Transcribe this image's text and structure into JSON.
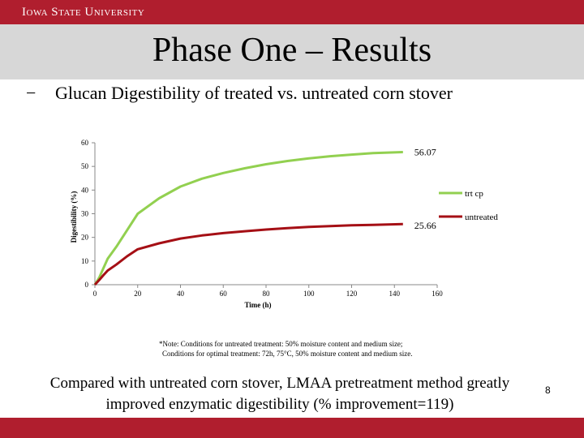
{
  "header": {
    "brand": "Iowa State University"
  },
  "slide": {
    "title": "Phase One – Results",
    "bullet_marker": "−",
    "bullet_text": "Glucan Digestibility of treated vs. untreated corn stover",
    "note_line1": "*Note: Conditions for untreated treatment: 50% moisture content and medium size;",
    "note_line2": "Conditions for optimal treatment: 72h, 75°C, 50% moisture content and medium size.",
    "conclusion_line1": "Compared with untreated corn stover, LMAA pretreatment method greatly",
    "conclusion_line2": "improved enzymatic digestibility (% improvement=119)",
    "page_number": "8"
  },
  "colors": {
    "header_bar": "#b01e2e",
    "title_band": "#d7d7d7",
    "treated": "#92d050",
    "untreated": "#a50f15"
  },
  "chart_data": {
    "type": "line",
    "xlabel": "Time (h)",
    "ylabel": "Digestibility (%)",
    "xlim": [
      0,
      160
    ],
    "ylim": [
      0,
      60
    ],
    "xticks": [
      0,
      20,
      40,
      60,
      80,
      100,
      120,
      140,
      160
    ],
    "yticks": [
      0,
      10,
      20,
      30,
      40,
      50,
      60
    ],
    "grid": false,
    "series": [
      {
        "name": "trt cp",
        "x": [
          0,
          2,
          4,
          6,
          10,
          15,
          20,
          30,
          40,
          50,
          60,
          70,
          80,
          90,
          100,
          110,
          120,
          130,
          144
        ],
        "y": [
          0,
          3,
          7,
          11,
          16,
          23,
          30,
          36.5,
          41.5,
          44.8,
          47.2,
          49.2,
          50.9,
          52.3,
          53.4,
          54.3,
          55.0,
          55.6,
          56.07
        ],
        "end_label": "56.07"
      },
      {
        "name": "untreated",
        "x": [
          0,
          2,
          4,
          6,
          10,
          15,
          20,
          30,
          40,
          50,
          60,
          70,
          80,
          90,
          100,
          110,
          120,
          130,
          144
        ],
        "y": [
          0,
          2,
          4,
          6,
          8.5,
          12,
          15,
          17.5,
          19.5,
          20.8,
          21.8,
          22.6,
          23.3,
          23.9,
          24.4,
          24.8,
          25.1,
          25.3,
          25.66
        ],
        "end_label": "25.66"
      }
    ]
  }
}
